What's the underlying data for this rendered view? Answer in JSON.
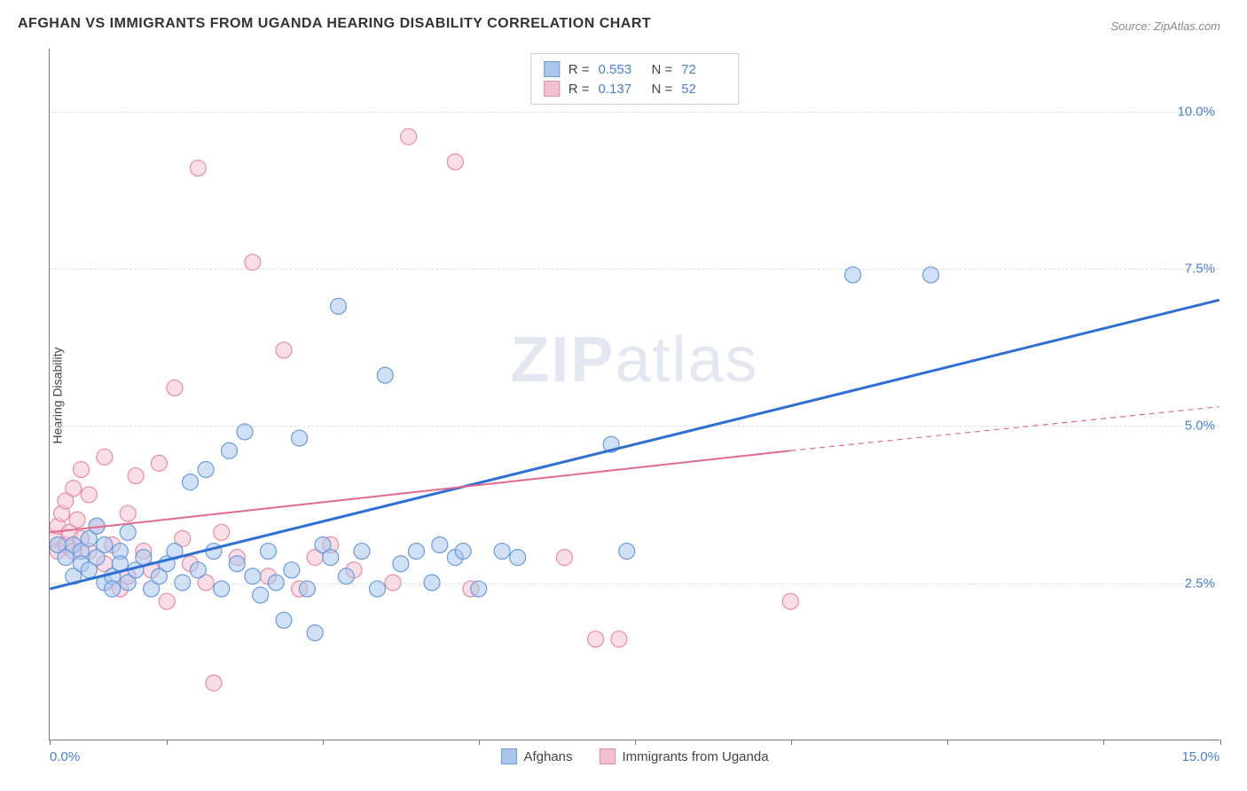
{
  "title": "AFGHAN VS IMMIGRANTS FROM UGANDA HEARING DISABILITY CORRELATION CHART",
  "source": "Source: ZipAtlas.com",
  "ylabel": "Hearing Disability",
  "watermark_bold": "ZIP",
  "watermark_light": "atlas",
  "chart": {
    "type": "scatter-with-regression",
    "xlim": [
      0,
      15
    ],
    "ylim": [
      0,
      11
    ],
    "x_tick_positions": [
      0,
      1.5,
      3.5,
      5.5,
      7.5,
      9.5,
      11.5,
      13.5,
      15
    ],
    "x_label_min": "0.0%",
    "x_label_max": "15.0%",
    "y_gridlines": [
      2.5,
      5.0,
      7.5,
      10.0
    ],
    "y_tick_labels": [
      "2.5%",
      "5.0%",
      "7.5%",
      "10.0%"
    ],
    "grid_color": "#dddddd",
    "axis_color": "#777777",
    "tick_label_color": "#4a7fd8",
    "background_color": "#ffffff",
    "marker_radius": 9,
    "marker_opacity": 0.55,
    "line_width_a": 3,
    "line_width_b": 2,
    "series": [
      {
        "name": "Afghans",
        "color_fill": "#a9c6ec",
        "color_stroke": "#6a9bdc",
        "line_color": "#2e6fd6",
        "r": "0.553",
        "n": "72",
        "regression": {
          "x1": 0,
          "y1": 2.4,
          "x2": 15,
          "y2": 7.0,
          "dashed": false
        },
        "points": [
          [
            0.1,
            3.1
          ],
          [
            0.2,
            2.9
          ],
          [
            0.3,
            3.1
          ],
          [
            0.3,
            2.6
          ],
          [
            0.4,
            3.0
          ],
          [
            0.4,
            2.8
          ],
          [
            0.5,
            3.2
          ],
          [
            0.5,
            2.7
          ],
          [
            0.6,
            2.9
          ],
          [
            0.6,
            3.4
          ],
          [
            0.7,
            2.5
          ],
          [
            0.7,
            3.1
          ],
          [
            0.8,
            2.6
          ],
          [
            0.8,
            2.4
          ],
          [
            0.9,
            3.0
          ],
          [
            0.9,
            2.8
          ],
          [
            1.0,
            2.5
          ],
          [
            1.0,
            3.3
          ],
          [
            1.1,
            2.7
          ],
          [
            1.2,
            2.9
          ],
          [
            1.3,
            2.4
          ],
          [
            1.4,
            2.6
          ],
          [
            1.5,
            2.8
          ],
          [
            1.6,
            3.0
          ],
          [
            1.7,
            2.5
          ],
          [
            1.8,
            4.1
          ],
          [
            1.9,
            2.7
          ],
          [
            2.0,
            4.3
          ],
          [
            2.1,
            3.0
          ],
          [
            2.2,
            2.4
          ],
          [
            2.3,
            4.6
          ],
          [
            2.4,
            2.8
          ],
          [
            2.5,
            4.9
          ],
          [
            2.6,
            2.6
          ],
          [
            2.7,
            2.3
          ],
          [
            2.8,
            3.0
          ],
          [
            2.9,
            2.5
          ],
          [
            3.0,
            1.9
          ],
          [
            3.1,
            2.7
          ],
          [
            3.2,
            4.8
          ],
          [
            3.3,
            2.4
          ],
          [
            3.4,
            1.7
          ],
          [
            3.5,
            3.1
          ],
          [
            3.6,
            2.9
          ],
          [
            3.7,
            6.9
          ],
          [
            3.8,
            2.6
          ],
          [
            4.0,
            3.0
          ],
          [
            4.2,
            2.4
          ],
          [
            4.3,
            5.8
          ],
          [
            4.5,
            2.8
          ],
          [
            4.7,
            3.0
          ],
          [
            4.9,
            2.5
          ],
          [
            5.0,
            3.1
          ],
          [
            5.2,
            2.9
          ],
          [
            5.3,
            3.0
          ],
          [
            5.5,
            2.4
          ],
          [
            5.8,
            3.0
          ],
          [
            6.0,
            2.9
          ],
          [
            7.2,
            4.7
          ],
          [
            7.4,
            3.0
          ],
          [
            10.3,
            7.4
          ],
          [
            11.3,
            7.4
          ]
        ]
      },
      {
        "name": "Immigrants from Uganda",
        "color_fill": "#f4c2cf",
        "color_stroke": "#e88ca5",
        "line_color": "#e26a8d",
        "r": "0.137",
        "n": "52",
        "regression_solid": {
          "x1": 0,
          "y1": 3.3,
          "x2": 9.5,
          "y2": 4.6
        },
        "regression_dashed": {
          "x1": 9.5,
          "y1": 4.6,
          "x2": 15,
          "y2": 5.3
        },
        "points": [
          [
            0.05,
            3.2
          ],
          [
            0.1,
            3.4
          ],
          [
            0.1,
            3.0
          ],
          [
            0.15,
            3.6
          ],
          [
            0.2,
            3.1
          ],
          [
            0.2,
            3.8
          ],
          [
            0.25,
            3.3
          ],
          [
            0.3,
            4.0
          ],
          [
            0.3,
            3.0
          ],
          [
            0.35,
            3.5
          ],
          [
            0.4,
            3.2
          ],
          [
            0.4,
            4.3
          ],
          [
            0.5,
            3.0
          ],
          [
            0.5,
            3.9
          ],
          [
            0.6,
            3.4
          ],
          [
            0.7,
            2.8
          ],
          [
            0.7,
            4.5
          ],
          [
            0.8,
            3.1
          ],
          [
            0.9,
            2.4
          ],
          [
            1.0,
            3.6
          ],
          [
            1.0,
            2.6
          ],
          [
            1.1,
            4.2
          ],
          [
            1.2,
            3.0
          ],
          [
            1.3,
            2.7
          ],
          [
            1.4,
            4.4
          ],
          [
            1.5,
            2.2
          ],
          [
            1.6,
            5.6
          ],
          [
            1.7,
            3.2
          ],
          [
            1.8,
            2.8
          ],
          [
            1.9,
            9.1
          ],
          [
            2.0,
            2.5
          ],
          [
            2.1,
            0.9
          ],
          [
            2.2,
            3.3
          ],
          [
            2.4,
            2.9
          ],
          [
            2.6,
            7.6
          ],
          [
            2.8,
            2.6
          ],
          [
            3.0,
            6.2
          ],
          [
            3.2,
            2.4
          ],
          [
            3.4,
            2.9
          ],
          [
            3.6,
            3.1
          ],
          [
            3.9,
            2.7
          ],
          [
            4.4,
            2.5
          ],
          [
            4.6,
            9.6
          ],
          [
            5.2,
            9.2
          ],
          [
            5.4,
            2.4
          ],
          [
            6.6,
            2.9
          ],
          [
            7.0,
            1.6
          ],
          [
            7.3,
            1.6
          ],
          [
            9.5,
            2.2
          ]
        ]
      }
    ]
  },
  "legend_top": {
    "r_label": "R =",
    "n_label": "N ="
  },
  "legend_bottom": [
    {
      "swatch_fill": "#a9c6ec",
      "swatch_stroke": "#6a9bdc",
      "label": "Afghans"
    },
    {
      "swatch_fill": "#f4c2cf",
      "swatch_stroke": "#e88ca5",
      "label": "Immigrants from Uganda"
    }
  ]
}
